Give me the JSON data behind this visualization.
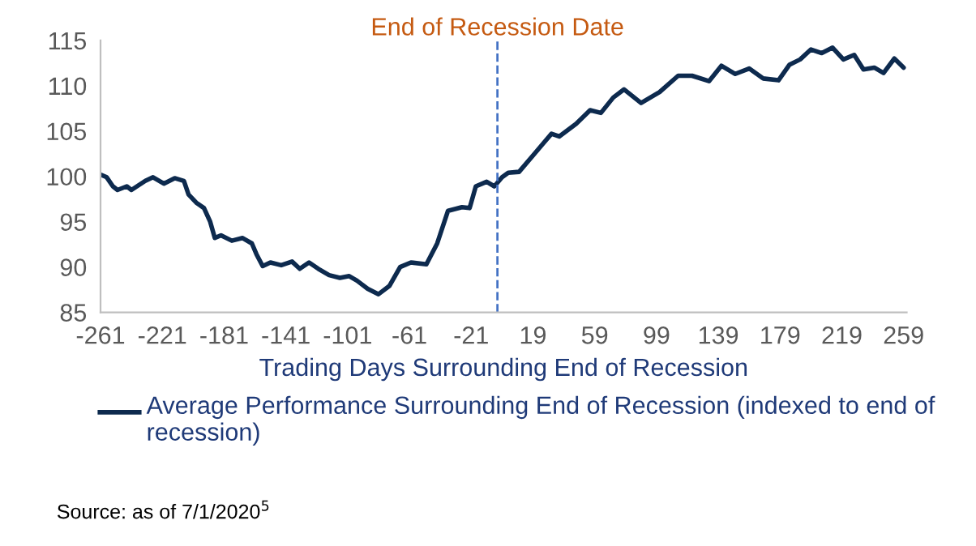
{
  "chart_data": {
    "type": "line",
    "xlabel": "Trading Days Surrounding End of Recession",
    "x": [
      -261,
      -257,
      -253,
      -250,
      -244,
      -241,
      -232,
      -227,
      -220,
      -213,
      -207,
      -204,
      -199,
      -194,
      -190,
      -187,
      -183,
      -176,
      -169,
      -163,
      -160,
      -156,
      -151,
      -144,
      -137,
      -132,
      -126,
      -120,
      -113,
      -106,
      -100,
      -95,
      -88,
      -81,
      -74,
      -67,
      -60,
      -50,
      -43,
      -36,
      -27,
      -22,
      -18,
      -11,
      -6,
      -1,
      3,
      10,
      20,
      26,
      31,
      36,
      47,
      56,
      63,
      71,
      78,
      89,
      101,
      113,
      122,
      133,
      141,
      150,
      159,
      168,
      178,
      185,
      192,
      199,
      206,
      213,
      220,
      227,
      233,
      240,
      246,
      253,
      259
    ],
    "series": [
      {
        "name": "Average Performance Surrounding End of Recession (indexed to end of recession)",
        "color": "#0d2a4e",
        "values": [
          100.2,
          99.9,
          98.9,
          98.5,
          98.9,
          98.5,
          99.5,
          99.9,
          99.2,
          99.8,
          99.5,
          98.0,
          97.1,
          96.5,
          95.0,
          93.2,
          93.5,
          92.9,
          93.2,
          92.6,
          91.4,
          90.1,
          90.5,
          90.2,
          90.6,
          89.8,
          90.5,
          89.8,
          89.1,
          88.8,
          89.0,
          88.5,
          87.6,
          87.0,
          87.9,
          90.0,
          90.5,
          90.3,
          92.6,
          96.2,
          96.6,
          96.5,
          98.9,
          99.4,
          98.9,
          99.9,
          100.4,
          100.5,
          102.5,
          103.7,
          104.7,
          104.4,
          105.8,
          107.3,
          107.0,
          108.7,
          109.6,
          108.1,
          109.3,
          111.1,
          111.1,
          110.5,
          112.2,
          111.3,
          111.9,
          110.8,
          110.6,
          112.3,
          112.9,
          114.0,
          113.6,
          114.2,
          112.9,
          113.4,
          111.8,
          112.0,
          111.4,
          113.0,
          112.0
        ]
      }
    ],
    "xlim": [
      -261,
      261
    ],
    "xticks": [
      -261,
      -221,
      -181,
      -141,
      -101,
      -61,
      -21,
      19,
      59,
      99,
      139,
      179,
      219,
      259
    ],
    "ylim": [
      85,
      115
    ],
    "yticks": [
      85,
      90,
      95,
      100,
      105,
      110,
      115
    ],
    "ref_lines": [
      {
        "axis": "x",
        "value": -4,
        "label": "End of Recession Date",
        "color": "#4472c4",
        "line_style": "dashed"
      }
    ],
    "annotations": [
      "Source: as of 7/1/2020$^{5}$"
    ],
    "grid": false,
    "legend": "bottom",
    "marker": "none",
    "line_style": "solid"
  }
}
